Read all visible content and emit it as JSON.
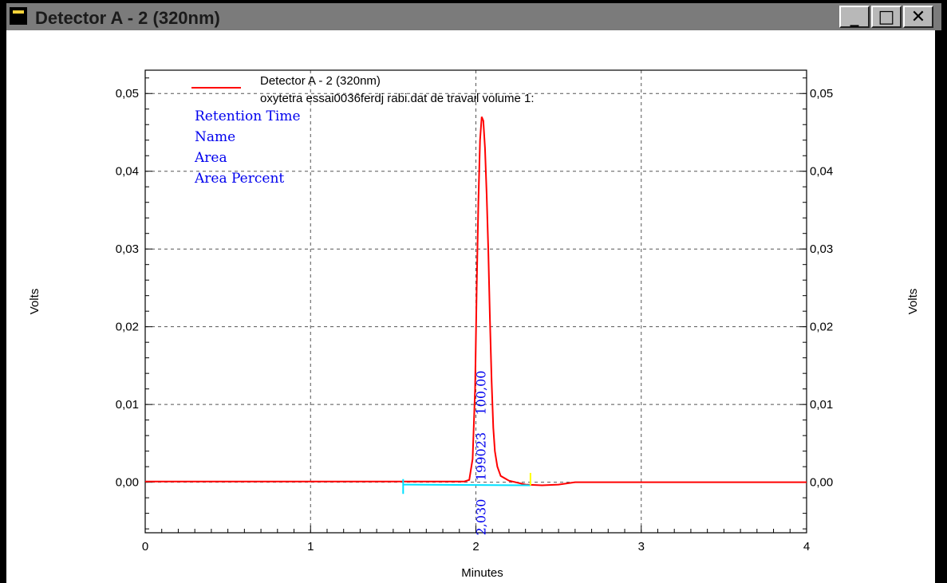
{
  "window": {
    "title": "Detector A - 2 (320nm)",
    "buttons": {
      "minimize": "_",
      "maximize": "□",
      "close": "✕"
    }
  },
  "chart_data": {
    "type": "line",
    "xlabel": "Minutes",
    "ylabel": "Volts",
    "ylabel_right": "Volts",
    "xlim": [
      0,
      4
    ],
    "ylim": [
      -0.0065,
      0.053
    ],
    "x_ticks": [
      "0",
      "1",
      "2",
      "3",
      "4"
    ],
    "y_ticks": [
      "0,05",
      "0,04",
      "0,03",
      "0,02",
      "0,01",
      "0,00"
    ],
    "y_tick_values": [
      0.05,
      0.04,
      0.03,
      0.02,
      0.01,
      0.0
    ],
    "grid": true,
    "legend": {
      "line1": "Detector A - 2 (320nm)",
      "line2": "oxytetra essai0036ferdj rabi.dat de travail volume 1:",
      "color": "#ff0000",
      "placement": "top"
    },
    "annotation_labels": [
      "Retention Time",
      "Name",
      "Area",
      "Area Percent"
    ],
    "peak_labels": {
      "retention_time": "2,030",
      "area": "199023",
      "area_percent": "100,00"
    },
    "series": [
      {
        "color": "#ff0000",
        "x": [
          0,
          0.5,
          1.0,
          1.5,
          1.93,
          1.96,
          1.98,
          1.995,
          2.005,
          2.015,
          2.025,
          2.035,
          2.045,
          2.055,
          2.065,
          2.075,
          2.085,
          2.095,
          2.105,
          2.115,
          2.13,
          2.15,
          2.2,
          2.3,
          2.4,
          2.5,
          2.6,
          3.0,
          3.5,
          4.0
        ],
        "y": [
          0.0001,
          0.0001,
          0.0001,
          0.0001,
          0.0001,
          0.0003,
          0.003,
          0.012,
          0.025,
          0.036,
          0.044,
          0.047,
          0.0465,
          0.043,
          0.037,
          0.03,
          0.021,
          0.013,
          0.007,
          0.004,
          0.002,
          0.0008,
          0.0002,
          -0.0003,
          -0.0004,
          -0.0003,
          0.0,
          0.0,
          0.0,
          0.0
        ]
      }
    ],
    "baseline": {
      "color": "#00e0ff",
      "x": [
        1.56,
        2.33
      ],
      "y": [
        -0.0003,
        -0.0004
      ],
      "start_marker_depth": -0.0015
    },
    "peak_end_marker": {
      "color": "#ffff00",
      "x": 2.33,
      "y_top": 0.0012,
      "y_bottom": -0.0004
    }
  }
}
